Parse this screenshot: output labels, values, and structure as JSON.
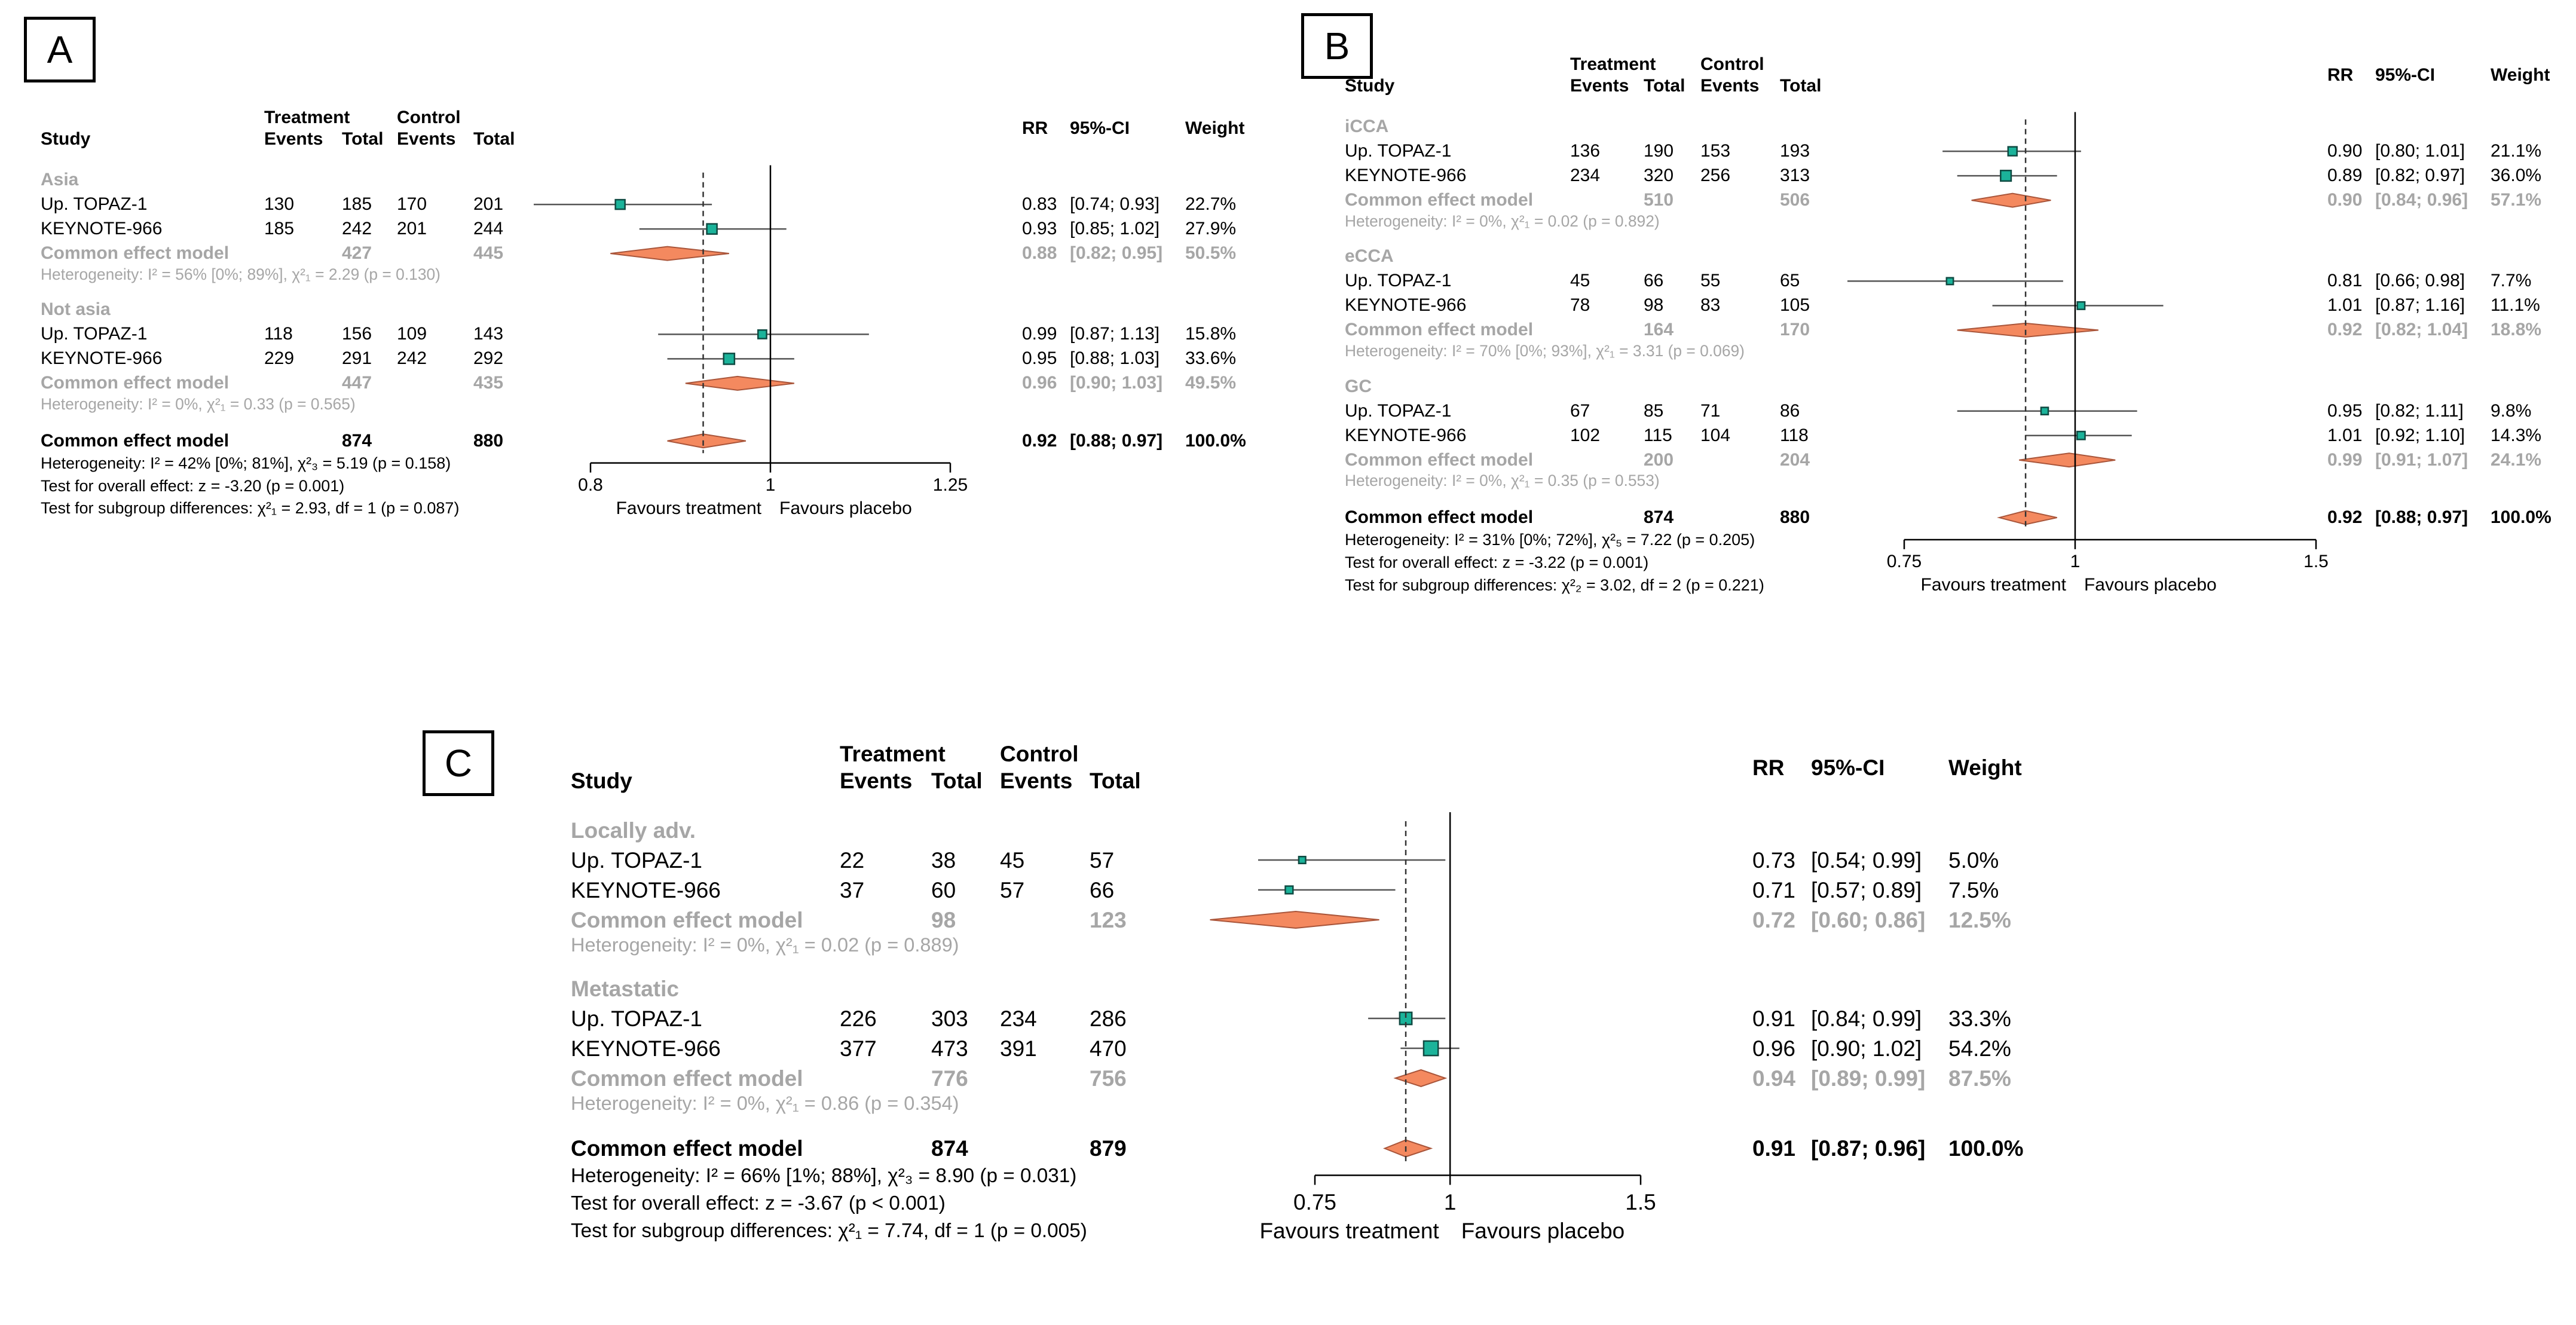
{
  "chart_data": [
    {
      "type": "forest",
      "panel_label": "A",
      "headers": {
        "study": "Study",
        "treatment": "Treatment",
        "control": "Control",
        "events": "Events",
        "total": "Total",
        "rr": "RR",
        "ci": "95%-CI",
        "weight": "Weight"
      },
      "axis": {
        "min": 0.8,
        "max": 1.25,
        "ticks": [
          "0.8",
          "1",
          "1.25"
        ],
        "ref_line": 1,
        "pooled_line": 0.92,
        "left_label": "Favours treatment",
        "right_label": "Favours placebo"
      },
      "subgroups": [
        {
          "name": "Asia",
          "studies": [
            {
              "study": "Up. TOPAZ-1",
              "t_events": "130",
              "t_total": "185",
              "c_events": "170",
              "c_total": "201",
              "rr": 0.83,
              "lo": 0.74,
              "hi": 0.93,
              "rr_text": "0.83",
              "ci": "[0.74; 0.93]",
              "weight": "22.7%"
            },
            {
              "study": "KEYNOTE-966",
              "t_events": "185",
              "t_total": "242",
              "c_events": "201",
              "c_total": "244",
              "rr": 0.93,
              "lo": 0.85,
              "hi": 1.02,
              "rr_text": "0.93",
              "ci": "[0.85; 1.02]",
              "weight": "27.9%"
            }
          ],
          "common": {
            "label": "Common effect model",
            "t_total": "427",
            "c_total": "445",
            "rr": 0.88,
            "lo": 0.82,
            "hi": 0.95,
            "rr_text": "0.88",
            "ci": "[0.82; 0.95]",
            "weight": "50.5%"
          },
          "heterogeneity": "Heterogeneity: I² = 56% [0%; 89%], χ²₁ = 2.29 (p = 0.130)"
        },
        {
          "name": "Not asia",
          "studies": [
            {
              "study": "Up. TOPAZ-1",
              "t_events": "118",
              "t_total": "156",
              "c_events": "109",
              "c_total": "143",
              "rr": 0.99,
              "lo": 0.87,
              "hi": 1.13,
              "rr_text": "0.99",
              "ci": "[0.87; 1.13]",
              "weight": "15.8%"
            },
            {
              "study": "KEYNOTE-966",
              "t_events": "229",
              "t_total": "291",
              "c_events": "242",
              "c_total": "292",
              "rr": 0.95,
              "lo": 0.88,
              "hi": 1.03,
              "rr_text": "0.95",
              "ci": "[0.88; 1.03]",
              "weight": "33.6%"
            }
          ],
          "common": {
            "label": "Common effect model",
            "t_total": "447",
            "c_total": "435",
            "rr": 0.96,
            "lo": 0.9,
            "hi": 1.03,
            "rr_text": "0.96",
            "ci": "[0.90; 1.03]",
            "weight": "49.5%"
          },
          "heterogeneity": "Heterogeneity: I² = 0%, χ²₁ = 0.33 (p = 0.565)"
        }
      ],
      "overall": {
        "label": "Common effect model",
        "t_total": "874",
        "c_total": "880",
        "rr": 0.92,
        "lo": 0.88,
        "hi": 0.97,
        "rr_text": "0.92",
        "ci": "[0.88; 0.97]",
        "weight": "100.0%"
      },
      "footer": [
        "Heterogeneity: I² = 42% [0%; 81%], χ²₃ = 5.19 (p = 0.158)",
        "Test for overall effect: z = -3.20 (p = 0.001)",
        "Test for subgroup differences: χ²₁ = 2.93, df = 1 (p = 0.087)"
      ]
    },
    {
      "type": "forest",
      "panel_label": "B",
      "headers": {
        "study": "Study",
        "treatment": "Treatment",
        "control": "Control",
        "events": "Events",
        "total": "Total",
        "rr": "RR",
        "ci": "95%-CI",
        "weight": "Weight"
      },
      "axis": {
        "min": 0.75,
        "max": 1.5,
        "ticks": [
          "0.75",
          "1",
          "1.5"
        ],
        "ref_line": 1,
        "pooled_line": 0.92,
        "left_label": "Favours treatment",
        "right_label": "Favours placebo"
      },
      "subgroups": [
        {
          "name": "iCCA",
          "studies": [
            {
              "study": "Up. TOPAZ-1",
              "t_events": "136",
              "t_total": "190",
              "c_events": "153",
              "c_total": "193",
              "rr": 0.9,
              "lo": 0.8,
              "hi": 1.01,
              "rr_text": "0.90",
              "ci": "[0.80; 1.01]",
              "weight": "21.1%"
            },
            {
              "study": "KEYNOTE-966",
              "t_events": "234",
              "t_total": "320",
              "c_events": "256",
              "c_total": "313",
              "rr": 0.89,
              "lo": 0.82,
              "hi": 0.97,
              "rr_text": "0.89",
              "ci": "[0.82; 0.97]",
              "weight": "36.0%"
            }
          ],
          "common": {
            "label": "Common effect model",
            "t_total": "510",
            "c_total": "506",
            "rr": 0.9,
            "lo": 0.84,
            "hi": 0.96,
            "rr_text": "0.90",
            "ci": "[0.84; 0.96]",
            "weight": "57.1%"
          },
          "heterogeneity": "Heterogeneity: I² = 0%, χ²₁ = 0.02 (p = 0.892)"
        },
        {
          "name": "eCCA",
          "studies": [
            {
              "study": "Up. TOPAZ-1",
              "t_events": "45",
              "t_total": "66",
              "c_events": "55",
              "c_total": "65",
              "rr": 0.81,
              "lo": 0.66,
              "hi": 0.98,
              "rr_text": "0.81",
              "ci": "[0.66; 0.98]",
              "weight": "7.7%"
            },
            {
              "study": "KEYNOTE-966",
              "t_events": "78",
              "t_total": "98",
              "c_events": "83",
              "c_total": "105",
              "rr": 1.01,
              "lo": 0.87,
              "hi": 1.16,
              "rr_text": "1.01",
              "ci": "[0.87; 1.16]",
              "weight": "11.1%"
            }
          ],
          "common": {
            "label": "Common effect model",
            "t_total": "164",
            "c_total": "170",
            "rr": 0.92,
            "lo": 0.82,
            "hi": 1.04,
            "rr_text": "0.92",
            "ci": "[0.82; 1.04]",
            "weight": "18.8%"
          },
          "heterogeneity": "Heterogeneity: I² = 70% [0%; 93%], χ²₁ = 3.31 (p = 0.069)"
        },
        {
          "name": "GC",
          "studies": [
            {
              "study": "Up. TOPAZ-1",
              "t_events": "67",
              "t_total": "85",
              "c_events": "71",
              "c_total": "86",
              "rr": 0.95,
              "lo": 0.82,
              "hi": 1.11,
              "rr_text": "0.95",
              "ci": "[0.82; 1.11]",
              "weight": "9.8%"
            },
            {
              "study": "KEYNOTE-966",
              "t_events": "102",
              "t_total": "115",
              "c_events": "104",
              "c_total": "118",
              "rr": 1.01,
              "lo": 0.92,
              "hi": 1.1,
              "rr_text": "1.01",
              "ci": "[0.92; 1.10]",
              "weight": "14.3%"
            }
          ],
          "common": {
            "label": "Common effect model",
            "t_total": "200",
            "c_total": "204",
            "rr": 0.99,
            "lo": 0.91,
            "hi": 1.07,
            "rr_text": "0.99",
            "ci": "[0.91; 1.07]",
            "weight": "24.1%"
          },
          "heterogeneity": "Heterogeneity: I² = 0%, χ²₁ = 0.35 (p = 0.553)"
        }
      ],
      "overall": {
        "label": "Common effect model",
        "t_total": "874",
        "c_total": "880",
        "rr": 0.92,
        "lo": 0.88,
        "hi": 0.97,
        "rr_text": "0.92",
        "ci": "[0.88; 0.97]",
        "weight": "100.0%"
      },
      "footer": [
        "Heterogeneity: I² = 31% [0%; 72%], χ²₅ = 7.22 (p = 0.205)",
        "Test for overall effect: z = -3.22 (p = 0.001)",
        "Test for subgroup differences: χ²₂ = 3.02, df = 2 (p = 0.221)"
      ]
    },
    {
      "type": "forest",
      "panel_label": "C",
      "headers": {
        "study": "Study",
        "treatment": "Treatment",
        "control": "Control",
        "events": "Events",
        "total": "Total",
        "rr": "RR",
        "ci": "95%-CI",
        "weight": "Weight"
      },
      "axis": {
        "min": 0.75,
        "max": 1.5,
        "ticks": [
          "0.75",
          "1",
          "1.5"
        ],
        "ref_line": 1,
        "pooled_line": 0.91,
        "left_label": "Favours treatment",
        "right_label": "Favours placebo"
      },
      "subgroups": [
        {
          "name": "Locally adv.",
          "studies": [
            {
              "study": "Up. TOPAZ-1",
              "t_events": "22",
              "t_total": "38",
              "c_events": "45",
              "c_total": "57",
              "rr": 0.73,
              "lo": 0.54,
              "hi": 0.99,
              "rr_text": "0.73",
              "ci": "[0.54; 0.99]",
              "weight": "5.0%"
            },
            {
              "study": "KEYNOTE-966",
              "t_events": "37",
              "t_total": "60",
              "c_events": "57",
              "c_total": "66",
              "rr": 0.71,
              "lo": 0.57,
              "hi": 0.89,
              "rr_text": "0.71",
              "ci": "[0.57; 0.89]",
              "weight": "7.5%"
            }
          ],
          "common": {
            "label": "Common effect model",
            "t_total": "98",
            "c_total": "123",
            "rr": 0.72,
            "lo": 0.6,
            "hi": 0.86,
            "rr_text": "0.72",
            "ci": "[0.60; 0.86]",
            "weight": "12.5%"
          },
          "heterogeneity": "Heterogeneity: I² = 0%, χ²₁ = 0.02 (p = 0.889)"
        },
        {
          "name": "Metastatic",
          "studies": [
            {
              "study": "Up. TOPAZ-1",
              "t_events": "226",
              "t_total": "303",
              "c_events": "234",
              "c_total": "286",
              "rr": 0.91,
              "lo": 0.84,
              "hi": 0.99,
              "rr_text": "0.91",
              "ci": "[0.84; 0.99]",
              "weight": "33.3%"
            },
            {
              "study": "KEYNOTE-966",
              "t_events": "377",
              "t_total": "473",
              "c_events": "391",
              "c_total": "470",
              "rr": 0.96,
              "lo": 0.9,
              "hi": 1.02,
              "rr_text": "0.96",
              "ci": "[0.90; 1.02]",
              "weight": "54.2%"
            }
          ],
          "common": {
            "label": "Common effect model",
            "t_total": "776",
            "c_total": "756",
            "rr": 0.94,
            "lo": 0.89,
            "hi": 0.99,
            "rr_text": "0.94",
            "ci": "[0.89; 0.99]",
            "weight": "87.5%"
          },
          "heterogeneity": "Heterogeneity: I² = 0%, χ²₁ = 0.86 (p = 0.354)"
        }
      ],
      "overall": {
        "label": "Common effect model",
        "t_total": "874",
        "c_total": "879",
        "rr": 0.91,
        "lo": 0.87,
        "hi": 0.96,
        "rr_text": "0.91",
        "ci": "[0.87; 0.96]",
        "weight": "100.0%"
      },
      "footer": [
        "Heterogeneity: I² = 66% [1%; 88%], χ²₃ = 8.90 (p = 0.031)",
        "Test for overall effect: z = -3.67 (p < 0.001)",
        "Test for subgroup differences: χ²₁ = 7.74, df = 1 (p = 0.005)"
      ]
    }
  ],
  "colors": {
    "study_box": "#1bb39a",
    "study_box_edge": "#0f4a42",
    "diamond": "#f4895f",
    "diamond_edge": "#a9553a",
    "subgroup_text": "#a6a6a6",
    "text": "#000000"
  }
}
